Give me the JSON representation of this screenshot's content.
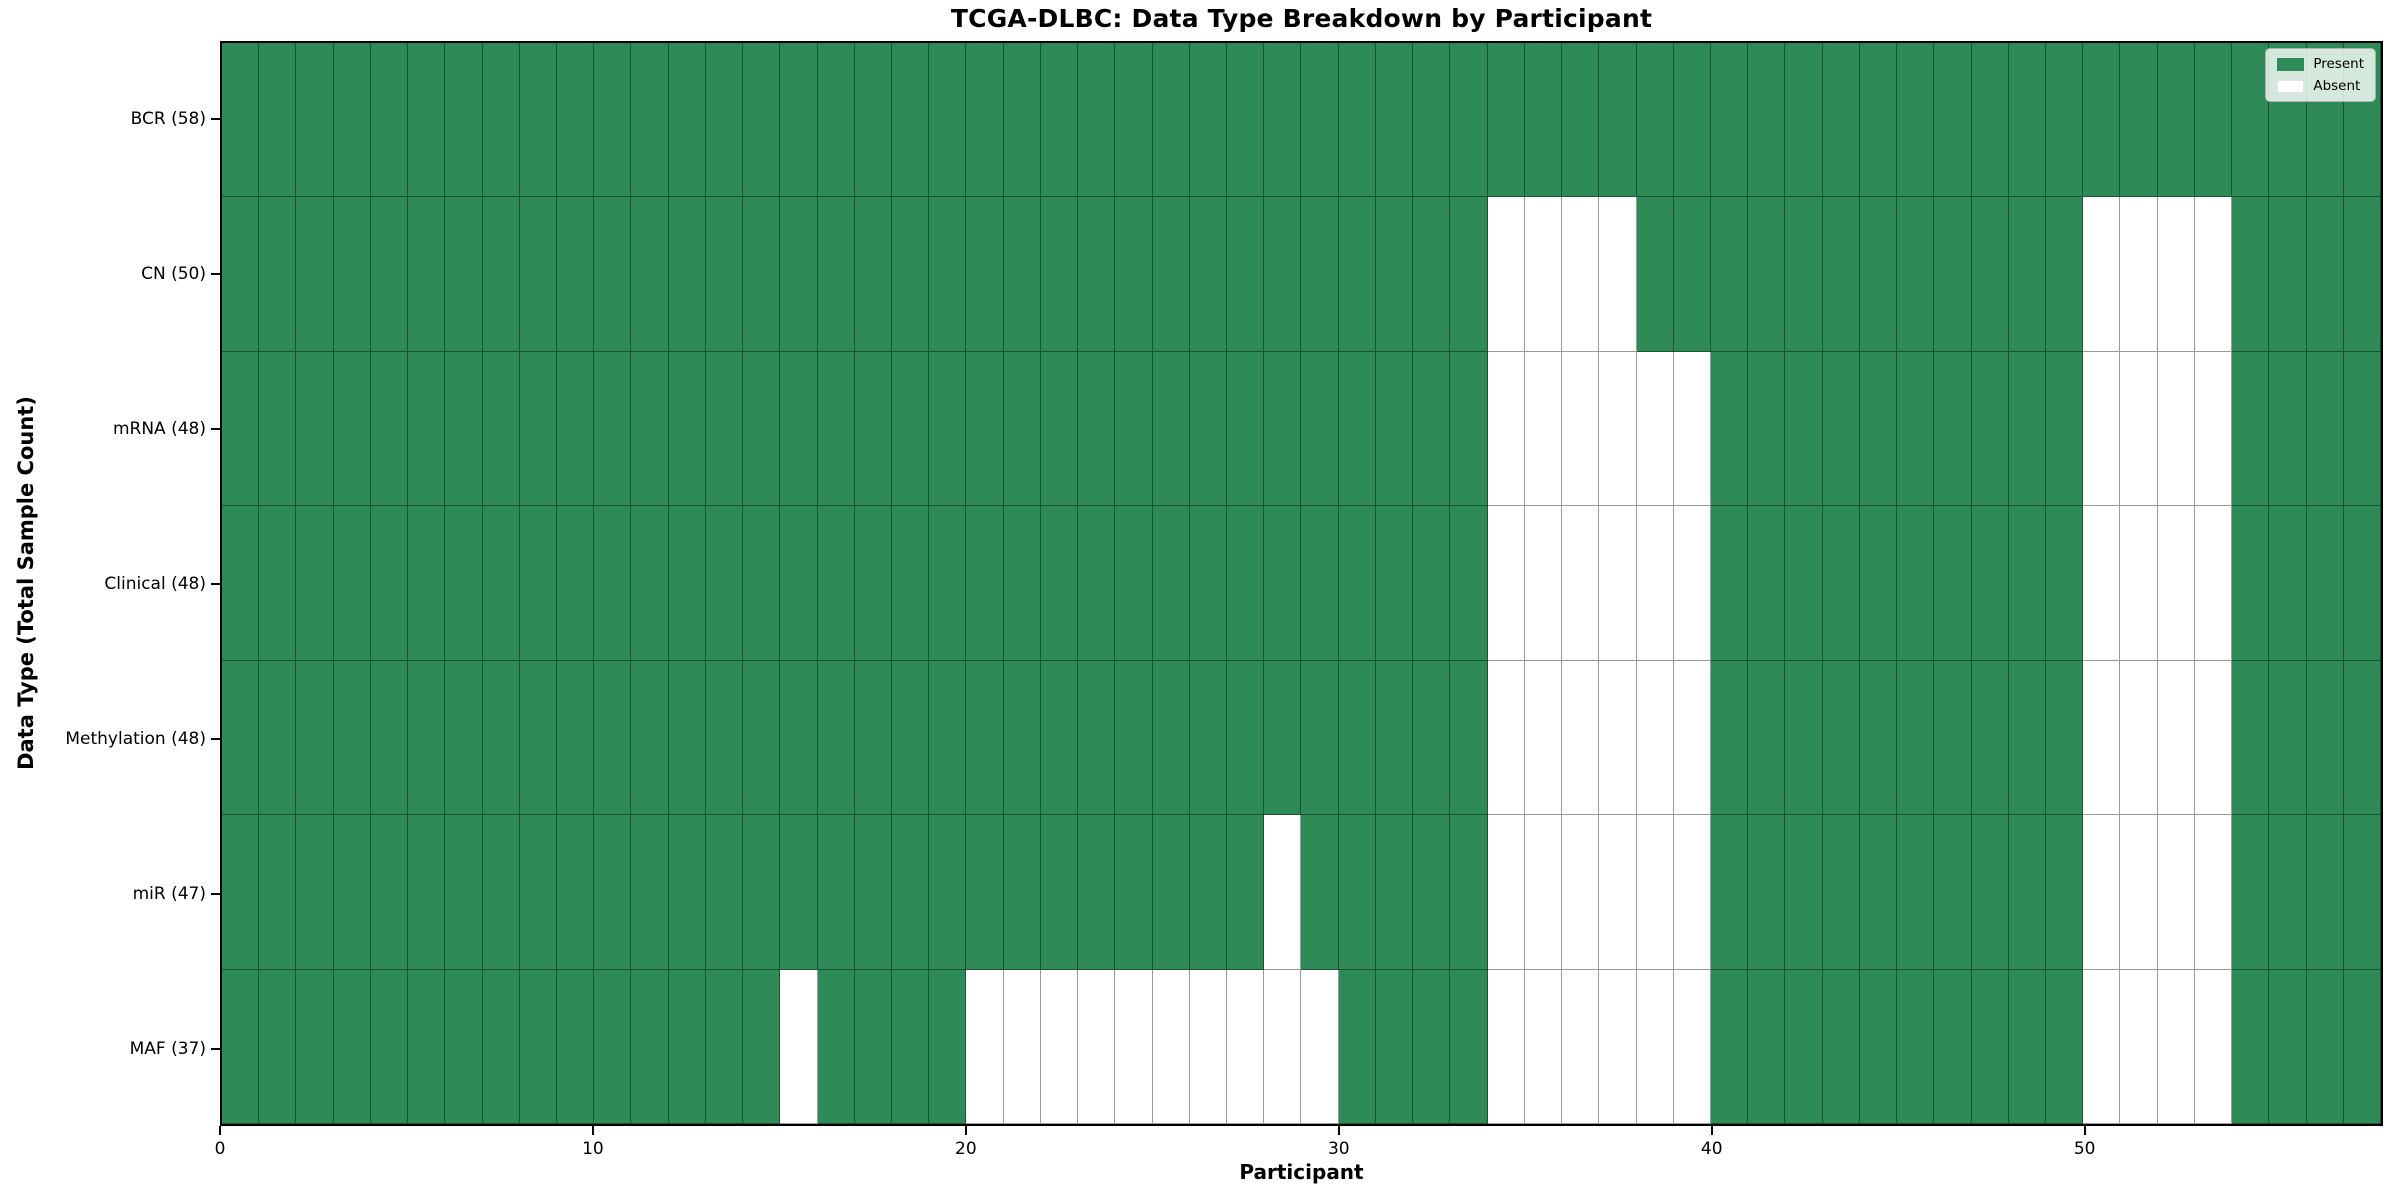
{
  "title": "TCGA-DLBC: Data Type Breakdown by Participant",
  "xlabel": "Participant",
  "ylabel": "Data Type (Total Sample Count)",
  "legend": {
    "present_label": "Present",
    "absent_label": "Absent",
    "position": "upper right"
  },
  "colors": {
    "present": "#2e8b57",
    "absent": "#ffffff",
    "grid_line": "rgba(0,0,0,0.4)",
    "spine": "#000000",
    "legend_bg": "rgba(255,255,255,0.8)"
  },
  "chart_data": {
    "type": "heatmap",
    "title": "TCGA-DLBC: Data Type Breakdown by Participant",
    "xlabel": "Participant",
    "ylabel": "Data Type (Total Sample Count)",
    "n_participants": 58,
    "x_range": [
      0,
      58
    ],
    "x_ticks": [
      0,
      10,
      20,
      30,
      40,
      50
    ],
    "grid": true,
    "legend": [
      "Present",
      "Absent"
    ],
    "legend_position": "upper right",
    "value_encoding": {
      "present": 1,
      "absent": 0
    },
    "rows": [
      {
        "name": "BCR",
        "label": "BCR (58)",
        "total_samples": 58,
        "absent_participants": []
      },
      {
        "name": "CN",
        "label": "CN (50)",
        "total_samples": 50,
        "absent_participants": [
          34,
          35,
          36,
          37,
          50,
          51,
          52,
          53
        ]
      },
      {
        "name": "mRNA",
        "label": "mRNA (48)",
        "total_samples": 48,
        "absent_participants": [
          34,
          35,
          36,
          37,
          38,
          39,
          50,
          51,
          52,
          53
        ]
      },
      {
        "name": "Clinical",
        "label": "Clinical (48)",
        "total_samples": 48,
        "absent_participants": [
          34,
          35,
          36,
          37,
          38,
          39,
          50,
          51,
          52,
          53
        ]
      },
      {
        "name": "Methylation",
        "label": "Methylation (48)",
        "total_samples": 48,
        "absent_participants": [
          34,
          35,
          36,
          37,
          38,
          39,
          50,
          51,
          52,
          53
        ]
      },
      {
        "name": "miR",
        "label": "miR (47)",
        "total_samples": 47,
        "absent_participants": [
          28,
          34,
          35,
          36,
          37,
          38,
          39,
          50,
          51,
          52,
          53
        ]
      },
      {
        "name": "MAF",
        "label": "MAF (37)",
        "total_samples": 37,
        "absent_participants": [
          15,
          20,
          21,
          22,
          23,
          24,
          25,
          26,
          27,
          28,
          29,
          34,
          35,
          36,
          37,
          38,
          39,
          50,
          51,
          52,
          53
        ]
      }
    ]
  }
}
